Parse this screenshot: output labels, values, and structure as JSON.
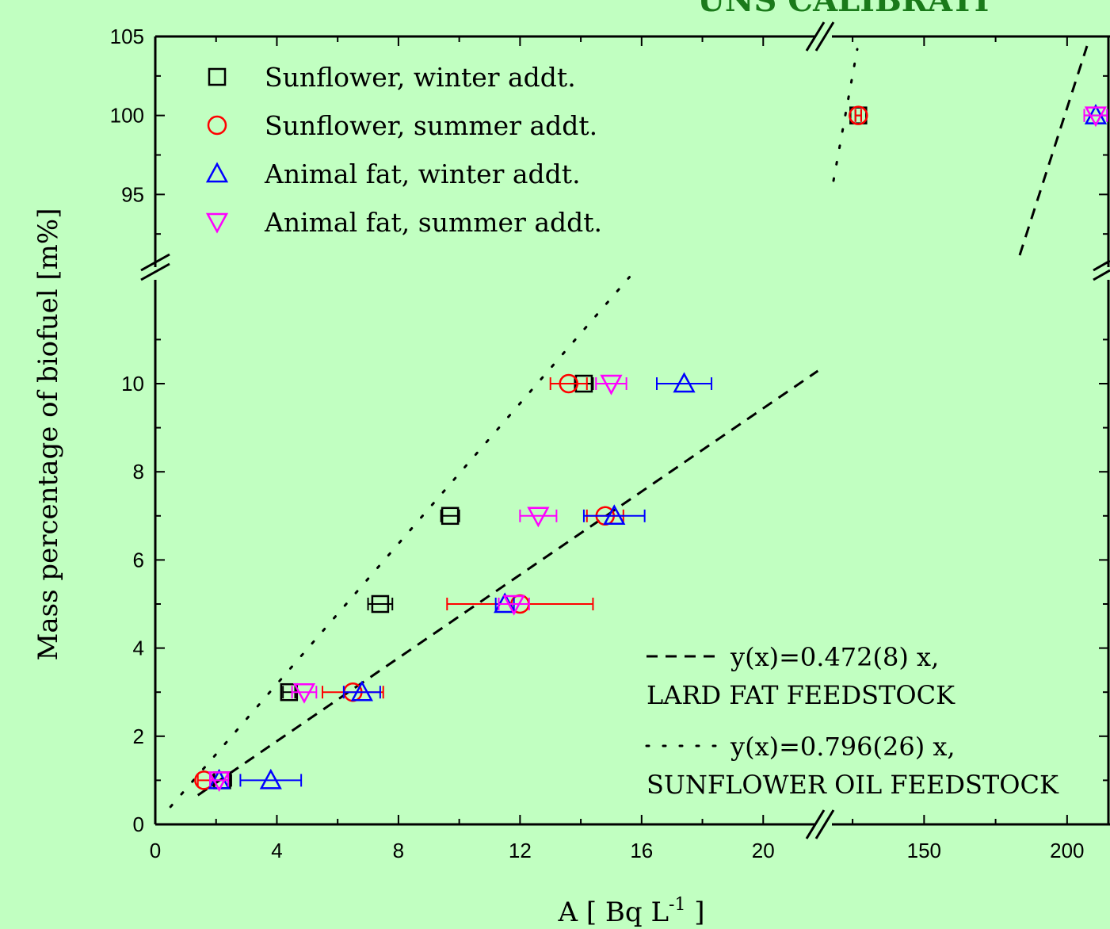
{
  "corner_text": "UNS CALIBRATI",
  "chart_data": {
    "type": "scatter",
    "xlabel": "A [ Bq L",
    "xlabel_sup": "-1",
    "xlabel_end": " ]",
    "ylabel": "Mass percentage of biofuel [m%]",
    "x_segments": [
      {
        "range": [
          0,
          22
        ],
        "ticks": [
          0,
          4,
          8,
          12,
          16,
          20
        ]
      },
      {
        "range": [
          115,
          215
        ],
        "ticks": [
          150,
          200
        ]
      }
    ],
    "y_segments": [
      {
        "range": [
          0,
          12.5
        ],
        "ticks": [
          0,
          2,
          4,
          6,
          8,
          10
        ]
      },
      {
        "range": [
          90,
          105
        ],
        "ticks": [
          95,
          100,
          105
        ]
      }
    ],
    "series": [
      {
        "name": "Sunflower, winter addt.",
        "marker": "square",
        "color": "#000000",
        "points": [
          {
            "x": 2.2,
            "y": 1,
            "xerr": 0.3
          },
          {
            "x": 4.4,
            "y": 3,
            "xerr": 0.2
          },
          {
            "x": 7.4,
            "y": 5,
            "xerr": 0.4
          },
          {
            "x": 9.7,
            "y": 7,
            "xerr": 0.3
          },
          {
            "x": 14.1,
            "y": 10,
            "xerr": 0.3
          },
          {
            "x": 127,
            "y": 100,
            "xerr": 1
          }
        ]
      },
      {
        "name": "Sunflower, summer addt.",
        "marker": "circle",
        "color": "#ff0000",
        "points": [
          {
            "x": 1.6,
            "y": 1,
            "xerr": 0.2
          },
          {
            "x": 6.5,
            "y": 3,
            "xerr": 1.0
          },
          {
            "x": 12.0,
            "y": 5,
            "xerr": 2.4
          },
          {
            "x": 14.8,
            "y": 7,
            "xerr": 0.6
          },
          {
            "x": 13.6,
            "y": 10,
            "xerr": 0.6
          },
          {
            "x": 127,
            "y": 100,
            "xerr": 1
          }
        ]
      },
      {
        "name": "Animal fat, winter addt.",
        "marker": "triangle-up",
        "color": "#0000ff",
        "points": [
          {
            "x": 2.1,
            "y": 1,
            "xerr": 0.3
          },
          {
            "x": 3.8,
            "y": 1,
            "xerr": 1.0
          },
          {
            "x": 6.8,
            "y": 3,
            "xerr": 0.6
          },
          {
            "x": 11.5,
            "y": 5,
            "xerr": 0.3
          },
          {
            "x": 15.1,
            "y": 7,
            "xerr": 1.0
          },
          {
            "x": 17.4,
            "y": 10,
            "xerr": 0.9
          },
          {
            "x": 210,
            "y": 100,
            "xerr": 4
          }
        ]
      },
      {
        "name": "Animal fat, summer addt.",
        "marker": "triangle-down",
        "color": "#ff00ff",
        "points": [
          {
            "x": 2.1,
            "y": 1,
            "xerr": 0.3
          },
          {
            "x": 4.9,
            "y": 3,
            "xerr": 0.4
          },
          {
            "x": 11.8,
            "y": 5,
            "xerr": 0.5
          },
          {
            "x": 12.6,
            "y": 7,
            "xerr": 0.6
          },
          {
            "x": 15.0,
            "y": 10,
            "xerr": 0.5
          },
          {
            "x": 210,
            "y": 100,
            "xerr": 4
          }
        ]
      }
    ],
    "fits": [
      {
        "style": "dashed",
        "equation": "y(x)=0.472(8) x,",
        "label": "LARD FAT FEEDSTOCK",
        "slope": 0.472
      },
      {
        "style": "dotted",
        "equation": "y(x)=0.796(26) x,",
        "label": "SUNFLOWER OIL FEEDSTOCK",
        "slope": 0.796
      }
    ],
    "legend_position": "top-left",
    "fit_legend_position": "bottom-right",
    "axis_breaks": true,
    "grid": false
  }
}
